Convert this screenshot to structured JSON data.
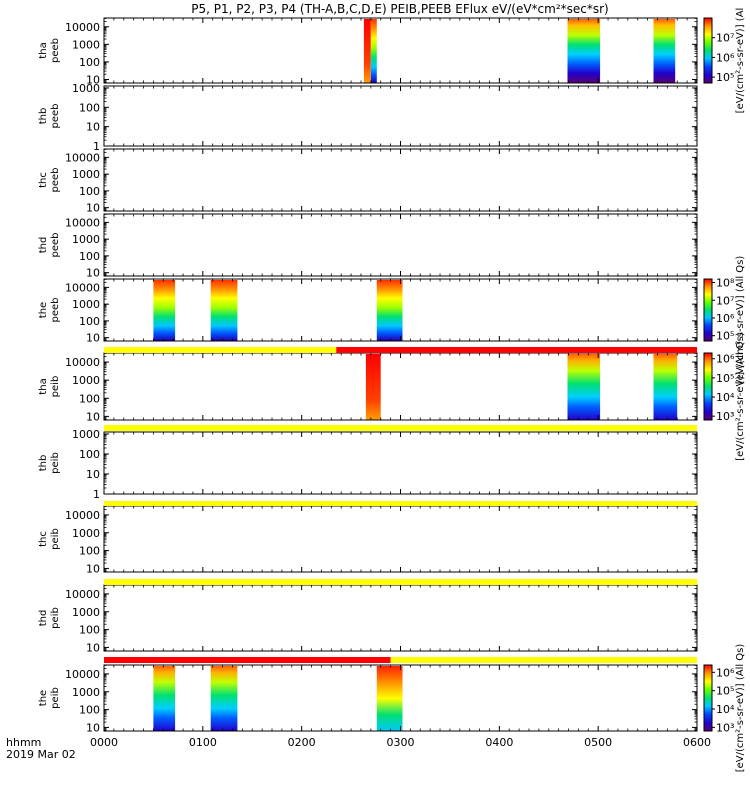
{
  "title": "P5, P1, P2, P3, P4 (TH-A,B,C,D,E) PEIB,PEEB EFlux eV/(eV*cm²*sec*sr)",
  "footer": {
    "label1": "hhmm",
    "label2": "2019 Mar 02"
  },
  "colors": {
    "axis": "#000000",
    "flag_yellow": "#ffff00",
    "flag_red": "#ff0000"
  },
  "chart_data": {
    "type": "heatmap",
    "x_axis": {
      "range": [
        0,
        600
      ],
      "ticks": [
        {
          "v": 0,
          "label": "0000"
        },
        {
          "v": 100,
          "label": "0100"
        },
        {
          "v": 200,
          "label": "0200"
        },
        {
          "v": 300,
          "label": "0300"
        },
        {
          "v": 400,
          "label": "0400"
        },
        {
          "v": 500,
          "label": "0500"
        },
        {
          "v": 600,
          "label": "0600"
        }
      ]
    },
    "colorbars": [
      {
        "label": "[eV/(cm²-s-sr-eV)] (Al",
        "ticks": [
          "10⁷",
          "10⁶",
          "10⁵"
        ],
        "log_range": [
          4.7,
          8
        ]
      },
      {
        "label": "[eV/(cm²-s-sr-eV)] (All Qs)",
        "ticks": [
          "10⁸",
          "10⁷",
          "10⁶",
          "10⁵"
        ],
        "log_range": [
          4.7,
          8.2
        ]
      },
      {
        "label": "[eV/(cm²-s-sr-eV)] (All Qs)",
        "ticks": [
          "10⁶",
          "10⁵",
          "10⁴",
          "10³"
        ],
        "log_range": [
          2.8,
          6.3
        ]
      },
      {
        "label": "[eV/(cm²-s-sr-eV)] (All Qs)",
        "ticks": [
          "10⁶",
          "10⁵",
          "10⁴",
          "10³"
        ],
        "log_range": [
          2.8,
          6.4
        ]
      }
    ],
    "panels": [
      {
        "label": [
          "tha",
          "peeb"
        ],
        "yticks": [
          "10000",
          "1000",
          "100",
          "10"
        ],
        "ylog": [
          0.8,
          4.5
        ],
        "cbar": 0,
        "blocks": [
          [
            263,
            270,
            "red"
          ],
          [
            270,
            276,
            "uniform"
          ],
          [
            469,
            502,
            "mixed"
          ],
          [
            556,
            578,
            "mixed"
          ]
        ]
      },
      {
        "label": [
          "thb",
          "peeb"
        ],
        "yticks": [
          "1000",
          "100",
          "10",
          "1"
        ],
        "ylog": [
          0,
          3.1
        ],
        "cbar": null,
        "blocks": []
      },
      {
        "label": [
          "thc",
          "peeb"
        ],
        "yticks": [
          "10000",
          "1000",
          "100",
          "10"
        ],
        "ylog": [
          0.8,
          4.5
        ],
        "cbar": null,
        "blocks": []
      },
      {
        "label": [
          "thd",
          "peeb"
        ],
        "yticks": [
          "10000",
          "1000",
          "100",
          "10"
        ],
        "ylog": [
          0.8,
          4.5
        ],
        "cbar": null,
        "blocks": []
      },
      {
        "label": [
          "the",
          "peeb"
        ],
        "yticks": [
          "10000",
          "1000",
          "100",
          "10"
        ],
        "ylog": [
          0.8,
          4.5
        ],
        "cbar": 1,
        "blocks": [
          [
            50,
            72,
            "uniform"
          ],
          [
            108,
            135,
            "uniform"
          ],
          [
            276,
            302,
            "uniform"
          ]
        ]
      },
      {
        "label": [
          "tha",
          "peib"
        ],
        "yticks": [
          "10000",
          "1000",
          "100",
          "10"
        ],
        "ylog": [
          0.8,
          4.5
        ],
        "cbar": 2,
        "blocks": [
          [
            265,
            280,
            "red"
          ],
          [
            469,
            502,
            "ion_low"
          ],
          [
            556,
            580,
            "ion_low"
          ]
        ]
      },
      {
        "label": [
          "thb",
          "peib"
        ],
        "yticks": [
          "1000",
          "100",
          "10",
          "1"
        ],
        "ylog": [
          0,
          3.1
        ],
        "cbar": null,
        "blocks": []
      },
      {
        "label": [
          "thc",
          "peib"
        ],
        "yticks": [
          "10000",
          "1000",
          "100",
          "10"
        ],
        "ylog": [
          0.8,
          4.5
        ],
        "cbar": null,
        "blocks": []
      },
      {
        "label": [
          "thd",
          "peib"
        ],
        "yticks": [
          "10000",
          "1000",
          "100",
          "10"
        ],
        "ylog": [
          0.8,
          4.5
        ],
        "cbar": null,
        "blocks": []
      },
      {
        "label": [
          "the",
          "peib"
        ],
        "yticks": [
          "10000",
          "1000",
          "100",
          "10"
        ],
        "ylog": [
          0.8,
          4.5
        ],
        "cbar": 3,
        "blocks": [
          [
            50,
            72,
            "ion_low"
          ],
          [
            108,
            135,
            "ion_low"
          ],
          [
            276,
            302,
            "ion"
          ]
        ]
      }
    ],
    "flag_bars": [
      {
        "segments": [
          [
            0,
            235,
            "yellow"
          ],
          [
            235,
            600,
            "red"
          ]
        ]
      },
      {
        "segments": [
          [
            0,
            600,
            "yellow"
          ]
        ]
      },
      {
        "segments": [
          [
            0,
            600,
            "yellow"
          ]
        ]
      },
      {
        "segments": [
          [
            0,
            600,
            "yellow"
          ]
        ]
      },
      {
        "segments": [
          [
            0,
            290,
            "red"
          ],
          [
            290,
            600,
            "yellow"
          ]
        ]
      }
    ]
  }
}
